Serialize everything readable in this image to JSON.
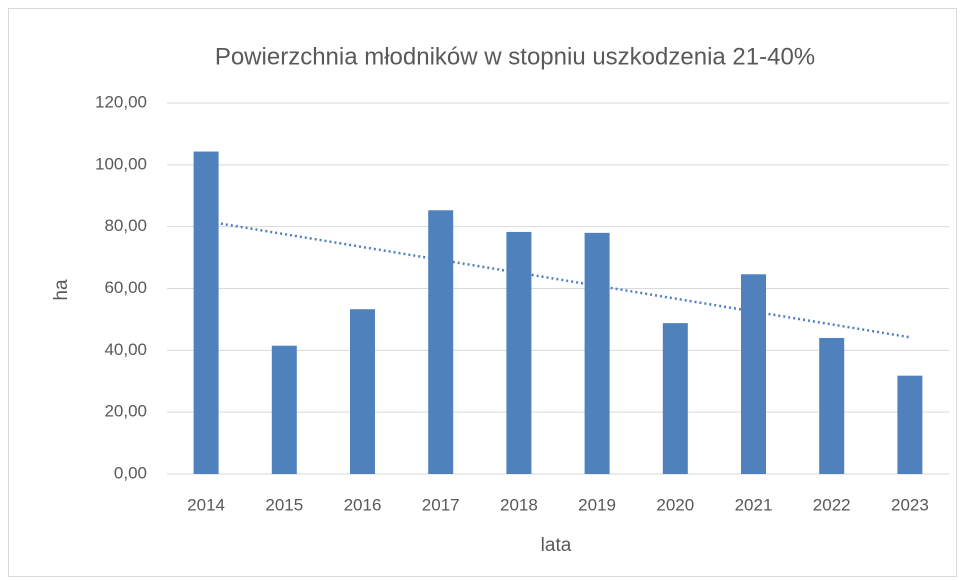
{
  "chart_data": {
    "type": "bar",
    "title": "Powierzchnia młodników w stopniu uszkodzenia 21-40%",
    "x_label": "lata",
    "y_label": "ha",
    "categories": [
      "2014",
      "2015",
      "2016",
      "2017",
      "2018",
      "2019",
      "2020",
      "2021",
      "2022",
      "2023"
    ],
    "values": [
      104.3,
      41.5,
      53.3,
      85.3,
      78.3,
      78.0,
      48.8,
      64.6,
      44.0,
      31.8
    ],
    "color": "#4f81bd",
    "trendline": "linear",
    "trendline_color": "#4f81bd",
    "ylim": [
      0,
      120
    ],
    "yticks": [
      {
        "value": 0,
        "label": "0,00"
      },
      {
        "value": 20,
        "label": "20,00"
      },
      {
        "value": 40,
        "label": "40,00"
      },
      {
        "value": 60,
        "label": "60,00"
      },
      {
        "value": 80,
        "label": "80,00"
      },
      {
        "value": 100,
        "label": "100,00"
      },
      {
        "value": 120,
        "label": "120,00"
      }
    ],
    "grid": true
  }
}
